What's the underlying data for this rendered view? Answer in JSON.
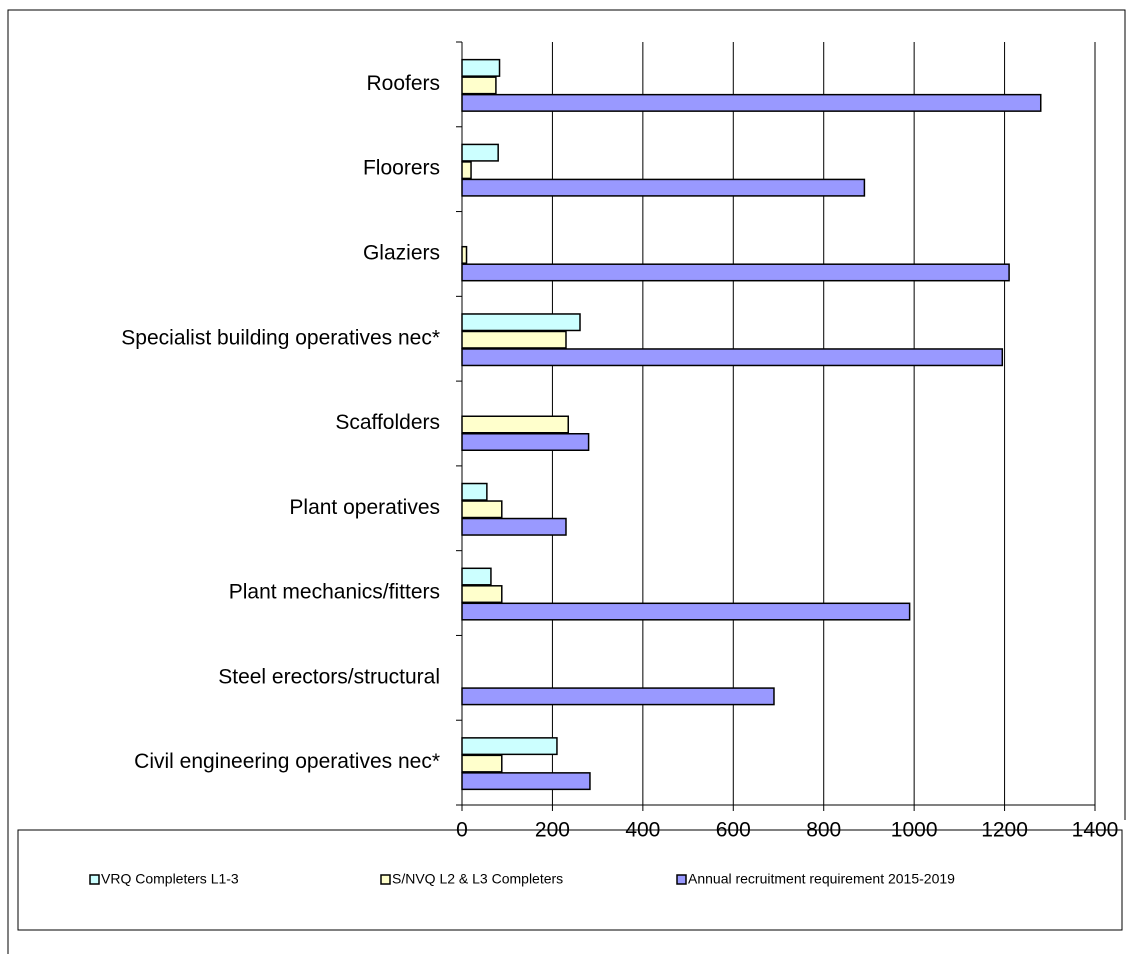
{
  "chart_data": {
    "type": "hbar",
    "categories": [
      "Roofers",
      "Floorers",
      "Glaziers",
      "Specialist building operatives nec*",
      "Scaffolders",
      "Plant operatives",
      "Plant mechanics/fitters",
      "Steel erectors/structural",
      "Civil engineering operatives nec*"
    ],
    "series": [
      {
        "name": "VRQ Completers L1-3",
        "color": "#ccffff",
        "values": [
          83,
          80,
          0,
          261,
          0,
          55,
          64,
          0,
          210
        ]
      },
      {
        "name": "S/NVQ L2 & L3 Completers",
        "color": "#ffffcc",
        "values": [
          75,
          20,
          10,
          230,
          235,
          88,
          88,
          0,
          88
        ]
      },
      {
        "name": "Annual recruitment requirement 2015-2019",
        "color": "#9999ff",
        "values": [
          1280,
          890,
          1210,
          1195,
          280,
          230,
          990,
          690,
          283
        ]
      }
    ],
    "xlim": [
      0,
      1400
    ],
    "xticks": [
      0,
      200,
      400,
      600,
      800,
      1000,
      1200,
      1400
    ],
    "grid": true,
    "legend": "bottom"
  }
}
